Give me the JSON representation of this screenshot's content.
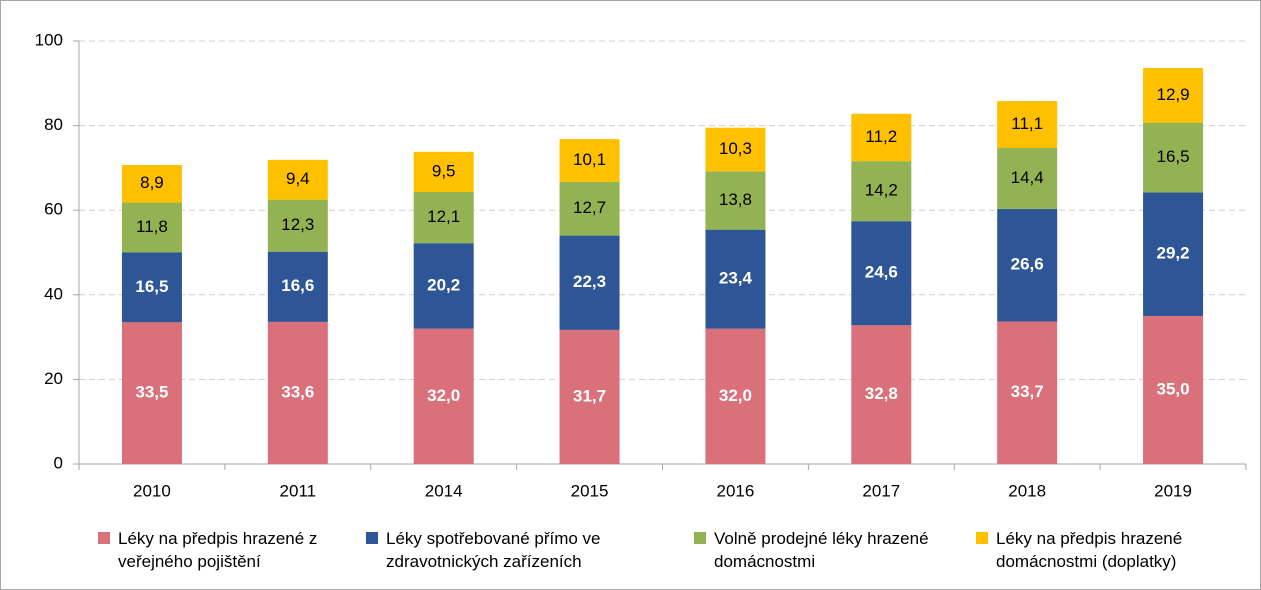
{
  "chart_data": {
    "type": "stacked_bar",
    "categories": [
      "2010",
      "2011",
      "2014",
      "2015",
      "2016",
      "2017",
      "2018",
      "2019"
    ],
    "series": [
      {
        "name": "Léky na předpis hrazené z veřejného pojištění",
        "color": "#d9707a",
        "values": [
          33.5,
          33.6,
          32.0,
          31.7,
          32.0,
          32.8,
          33.7,
          35.0
        ],
        "value_labels": [
          "33,5",
          "33,6",
          "32,0",
          "31,7",
          "32,0",
          "32,8",
          "33,7",
          "35,0"
        ]
      },
      {
        "name": "Léky spotřebované přímo ve zdravotnických zařízeních",
        "color": "#2e5596",
        "values": [
          16.5,
          16.6,
          20.2,
          22.3,
          23.4,
          24.6,
          26.6,
          29.2
        ],
        "value_labels": [
          "16,5",
          "16,6",
          "20,2",
          "22,3",
          "23,4",
          "24,6",
          "26,6",
          "29,2"
        ]
      },
      {
        "name": "Volně prodejné léky hrazené domácnostmi",
        "color": "#93b254",
        "values": [
          11.8,
          12.3,
          12.1,
          12.7,
          13.8,
          14.2,
          14.4,
          16.5
        ],
        "value_labels": [
          "11,8",
          "12,3",
          "12,1",
          "12,7",
          "13,8",
          "14,2",
          "14,4",
          "16,5"
        ]
      },
      {
        "name": "Léky na předpis hrazené domácnostmi (doplatky)",
        "color": "#ffc000",
        "values": [
          8.9,
          9.4,
          9.5,
          10.1,
          10.3,
          11.2,
          11.1,
          12.9
        ],
        "value_labels": [
          "8,9",
          "9,4",
          "9,5",
          "10,1",
          "10,3",
          "11,2",
          "11,1",
          "12,9"
        ]
      }
    ],
    "ylim": [
      0,
      100
    ],
    "yticks": [
      0,
      20,
      40,
      60,
      80,
      100
    ],
    "grid": true,
    "legend": "bottom"
  }
}
